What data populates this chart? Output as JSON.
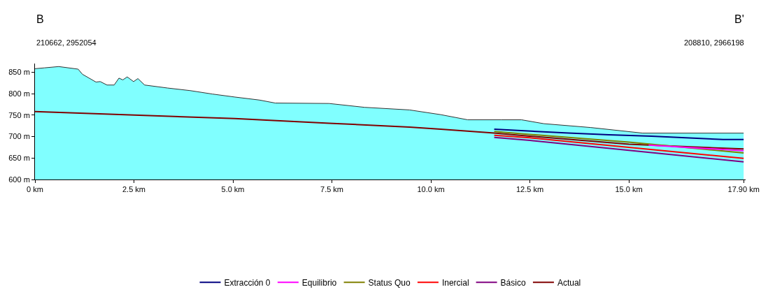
{
  "chart_data": {
    "type": "line",
    "annotations": [
      "B",
      "B'",
      "210662, 2952054",
      "208810, 2966198"
    ],
    "series": [
      {
        "type": "area",
        "color": "#80ffff",
        "x": [
          0,
          0.24,
          0.6,
          1.09,
          1.2,
          1.54,
          1.65,
          1.82,
          2.0,
          2.12,
          2.22,
          2.33,
          2.49,
          2.6,
          2.77,
          3.35,
          3.92,
          4.48,
          5.05,
          5.67,
          6.07,
          7.43,
          8.33,
          9.46,
          10.25,
          10.93,
          11.78,
          12.29,
          12.85,
          14.04,
          15.35,
          17.9
        ],
        "values": [
          858,
          860,
          863,
          857,
          845,
          827,
          828,
          820,
          820,
          836,
          832,
          839,
          828,
          835,
          820,
          813,
          807,
          799,
          792,
          785,
          778,
          777,
          768,
          762,
          751,
          739,
          739,
          739,
          730,
          721,
          708,
          708
        ]
      },
      {
        "name": "Extracción 0",
        "color": "#000080",
        "x": [
          11.6,
          13.48,
          14.5,
          15.57,
          17.38,
          17.9
        ],
        "values": [
          717,
          708,
          704,
          701,
          693,
          693
        ]
      },
      {
        "name": "Equilibrio",
        "color": "#ff00ff",
        "x": [
          15.5,
          17.9
        ],
        "values": [
          680,
          667
        ]
      },
      {
        "name": "Status Quo",
        "color": "#808000",
        "x": [
          11.6,
          12.5,
          15,
          17.9
        ],
        "values": [
          712,
          705,
          687,
          662
        ]
      },
      {
        "name": "Inercial",
        "color": "#ff0000",
        "x": [
          11.6,
          12.5,
          15,
          17.9
        ],
        "values": [
          703,
          697,
          675,
          649
        ]
      },
      {
        "name": "Básico",
        "color": "#800080",
        "x": [
          11.6,
          12.5,
          15,
          17.9
        ],
        "values": [
          698,
          691,
          668,
          641
        ]
      },
      {
        "name": "Actual",
        "color": "#800000",
        "x": [
          0,
          5.05,
          5.67,
          7.43,
          9.46,
          10.25,
          11.6,
          12.5,
          15,
          17.9
        ],
        "values": [
          758,
          742,
          739,
          731,
          722,
          717,
          708,
          701,
          682,
          671
        ]
      }
    ],
    "xlim": [
      0,
      17.95
    ],
    "xticks": [
      {
        "value": 0,
        "label": "0 km"
      },
      {
        "value": 2.5,
        "label": "2.5 km"
      },
      {
        "value": 5,
        "label": "5.0 km"
      },
      {
        "value": 7.5,
        "label": "7.5 km"
      },
      {
        "value": 10,
        "label": "10.0 km"
      },
      {
        "value": 12.5,
        "label": "12.5 km"
      },
      {
        "value": 15,
        "label": "15.0 km"
      },
      {
        "value": 17.9,
        "label": "17.90 km"
      }
    ],
    "ylim": [
      600,
      870
    ],
    "yticks": [
      {
        "value": 600,
        "label": "600 m"
      },
      {
        "value": 650,
        "label": "650 m"
      },
      {
        "value": 700,
        "label": "700 m"
      },
      {
        "value": 750,
        "label": "750 m"
      },
      {
        "value": 800,
        "label": "800 m"
      },
      {
        "value": 850,
        "label": "850 m"
      }
    ],
    "legend": "bottom",
    "marker": "none",
    "line_style": "solid"
  }
}
